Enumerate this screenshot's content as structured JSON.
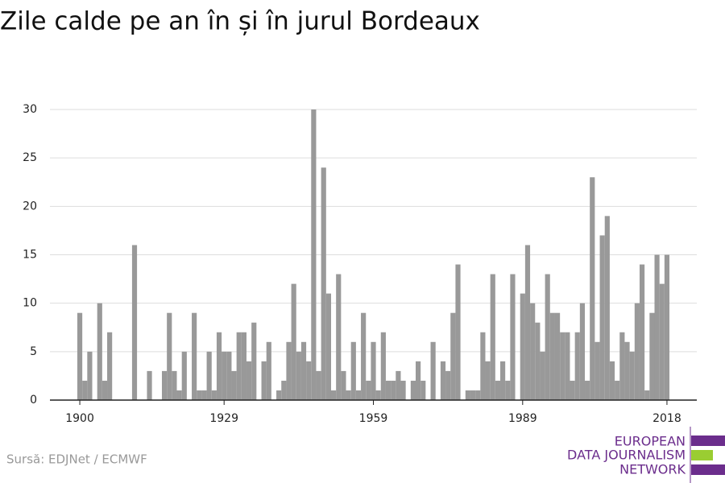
{
  "chart_data": {
    "type": "bar",
    "title": "Zile calde pe an în și în jurul Bordeaux",
    "x": [
      1900,
      1901,
      1902,
      1903,
      1904,
      1905,
      1906,
      1907,
      1908,
      1909,
      1910,
      1911,
      1912,
      1913,
      1914,
      1915,
      1916,
      1917,
      1918,
      1919,
      1920,
      1921,
      1922,
      1923,
      1924,
      1925,
      1926,
      1927,
      1928,
      1929,
      1930,
      1931,
      1932,
      1933,
      1934,
      1935,
      1936,
      1937,
      1938,
      1939,
      1940,
      1941,
      1942,
      1943,
      1944,
      1945,
      1946,
      1947,
      1948,
      1949,
      1950,
      1951,
      1952,
      1953,
      1954,
      1955,
      1956,
      1957,
      1958,
      1959,
      1960,
      1961,
      1962,
      1963,
      1964,
      1965,
      1966,
      1967,
      1968,
      1969,
      1970,
      1971,
      1972,
      1973,
      1974,
      1975,
      1976,
      1977,
      1978,
      1979,
      1980,
      1981,
      1982,
      1983,
      1984,
      1985,
      1986,
      1987,
      1988,
      1989,
      1990,
      1991,
      1992,
      1993,
      1994,
      1995,
      1996,
      1997,
      1998,
      1999,
      2000,
      2001,
      2002,
      2003,
      2004,
      2005,
      2006,
      2007,
      2008,
      2009,
      2010,
      2011,
      2012,
      2013,
      2014,
      2015,
      2016,
      2017,
      2018
    ],
    "values": [
      9,
      2,
      5,
      0,
      10,
      2,
      7,
      0,
      0,
      0,
      0,
      16,
      0,
      0,
      3,
      0,
      0,
      3,
      9,
      3,
      1,
      5,
      0,
      9,
      1,
      1,
      5,
      1,
      7,
      5,
      5,
      3,
      7,
      7,
      4,
      8,
      0,
      4,
      6,
      0,
      1,
      2,
      6,
      12,
      5,
      6,
      4,
      30,
      3,
      24,
      11,
      1,
      13,
      3,
      1,
      6,
      1,
      9,
      2,
      6,
      1,
      7,
      2,
      2,
      3,
      2,
      0,
      2,
      4,
      2,
      0,
      6,
      0,
      4,
      3,
      9,
      14,
      0,
      1,
      1,
      1,
      7,
      4,
      13,
      2,
      4,
      2,
      13,
      0,
      11,
      16,
      10,
      8,
      5,
      13,
      9,
      9,
      7,
      7,
      2,
      7,
      10,
      2,
      23,
      6,
      17,
      19,
      4,
      2,
      7,
      6,
      5,
      10,
      14,
      1,
      9,
      15,
      12,
      15
    ],
    "color": "#999999",
    "xlim": [
      1894,
      2024
    ],
    "xticks": [
      1900,
      1929,
      1959,
      1989,
      2018
    ],
    "ylim": [
      0,
      30
    ],
    "yticks": [
      0,
      5,
      10,
      15,
      20,
      25,
      30
    ],
    "grid": true,
    "source": "Sursă: EDJNet / ECMWF",
    "logo": [
      "EUROPEAN",
      "DATA JOURNALISM",
      "NETWORK"
    ]
  }
}
